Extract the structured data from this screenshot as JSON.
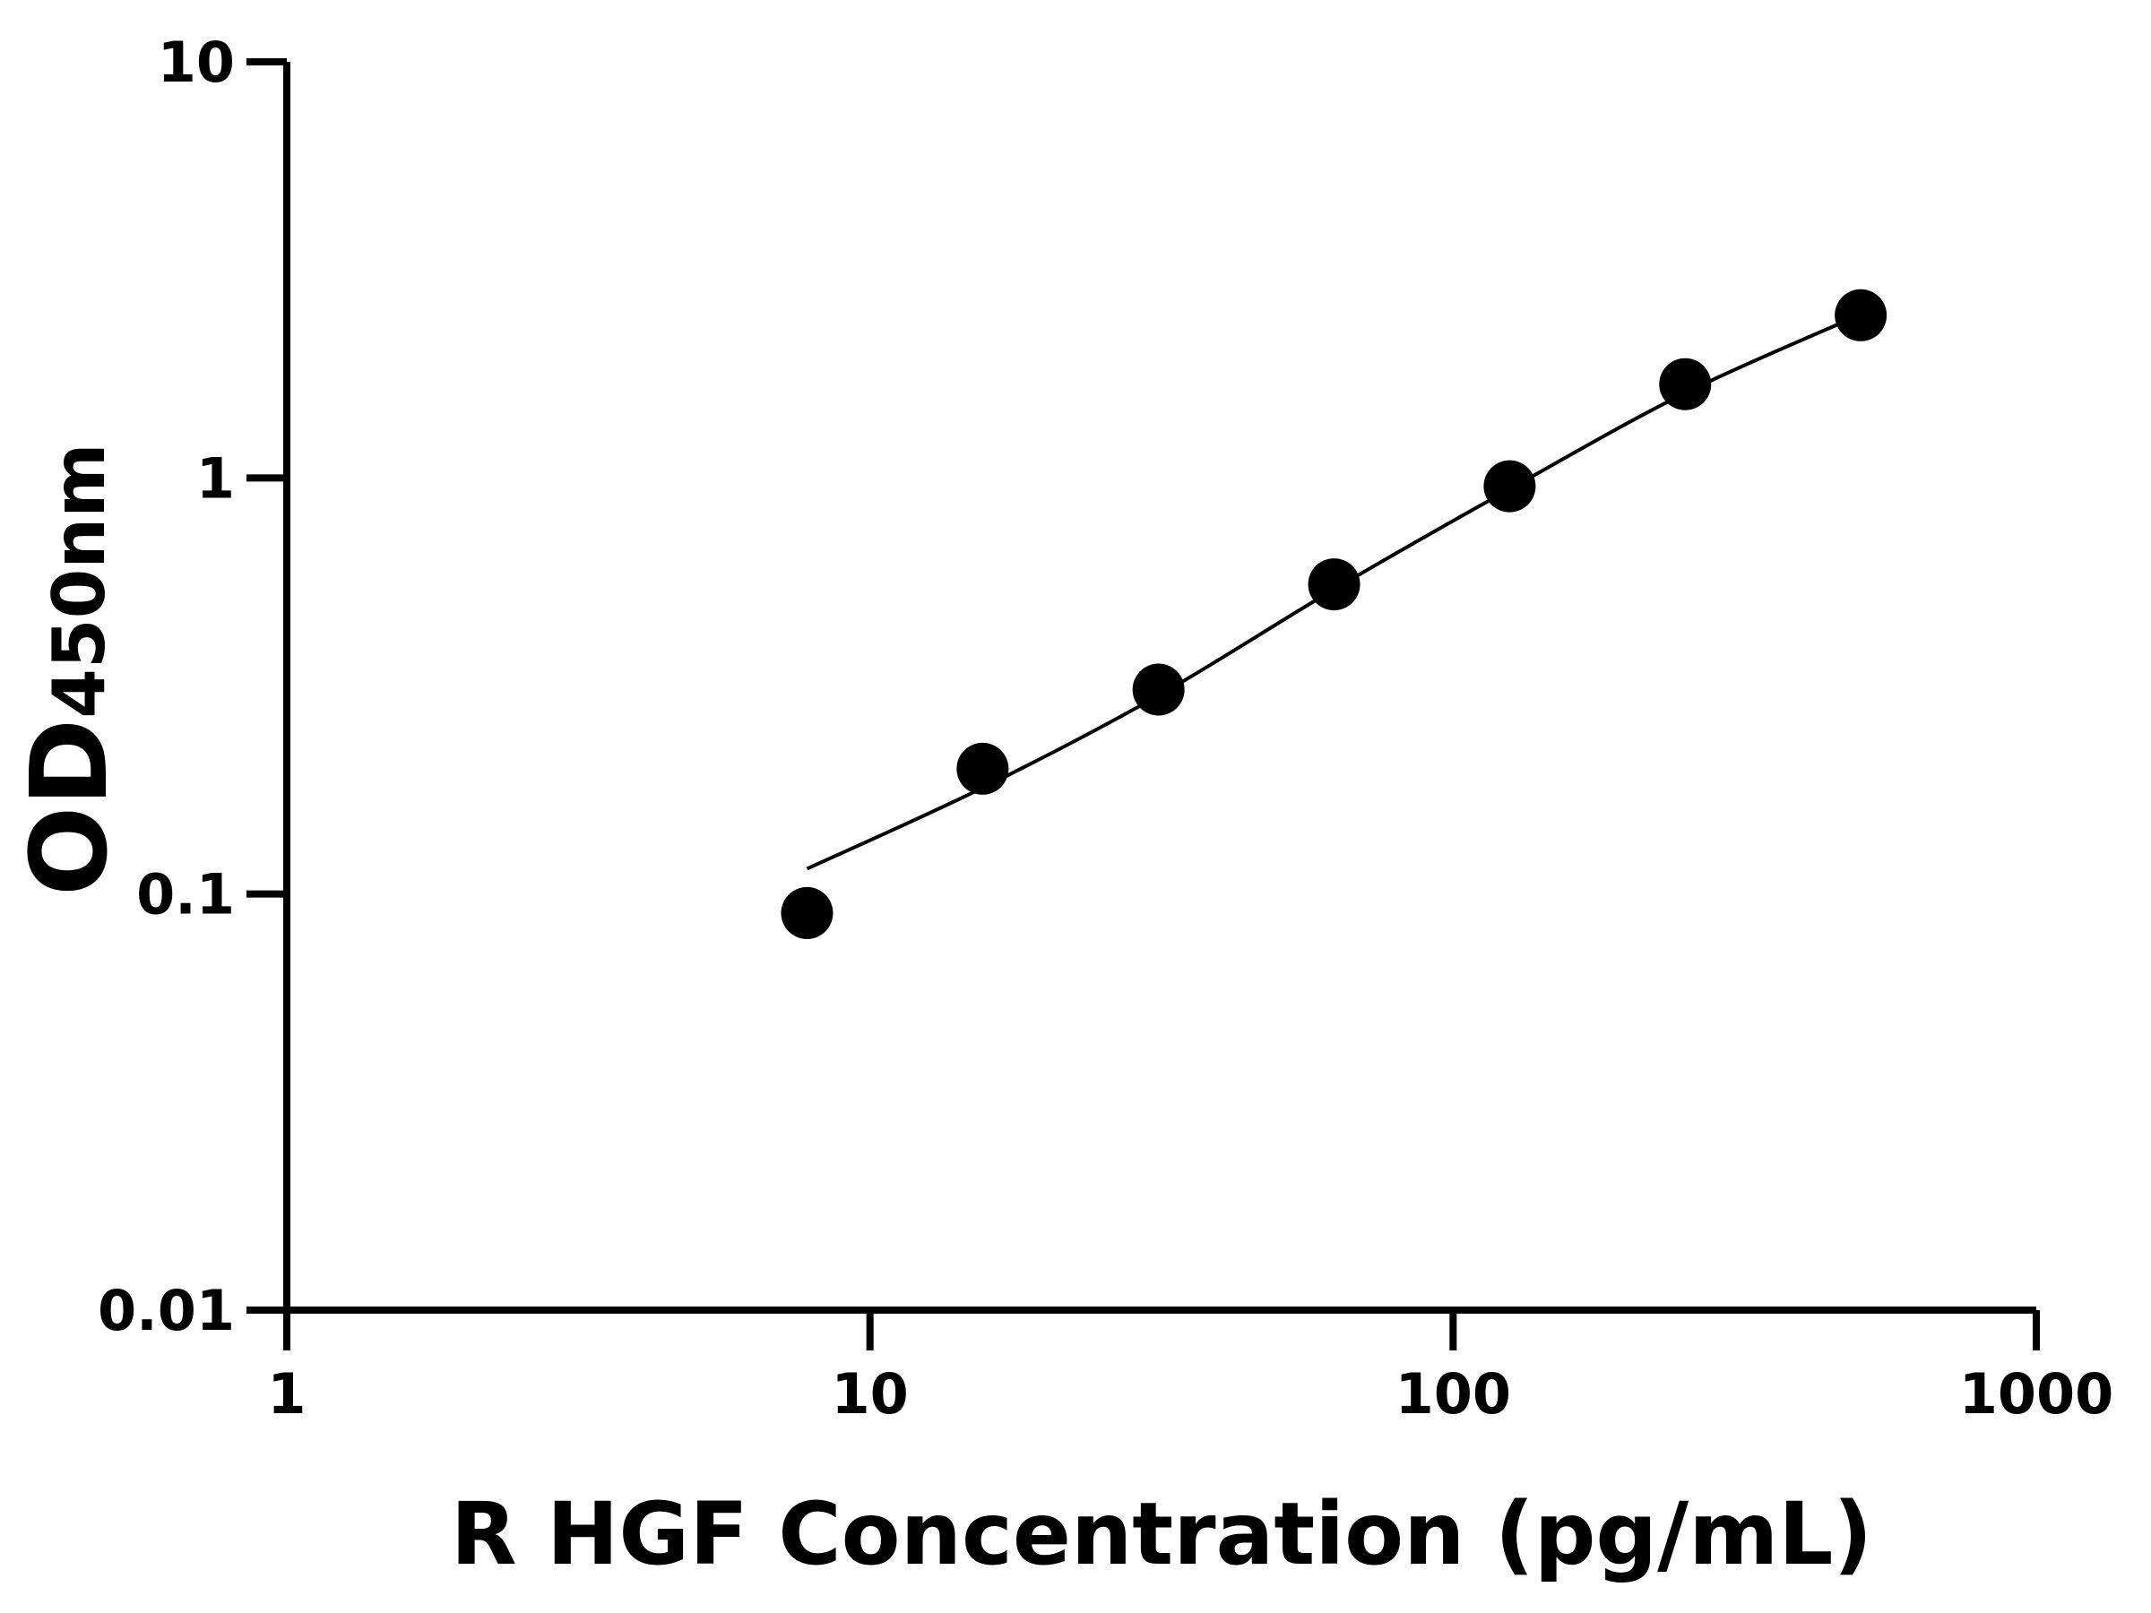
{
  "chart_data": {
    "type": "scatter",
    "title": "",
    "xlabel": "R HGF Concentration (pg/mL)",
    "ylabel_main": "OD",
    "ylabel_sub": "450nm",
    "x_scale": "log",
    "y_scale": "log",
    "xlim": [
      1,
      1000
    ],
    "ylim": [
      0.01,
      10
    ],
    "x_ticks": [
      "1",
      "10",
      "100",
      "1000"
    ],
    "y_ticks": [
      "0.01",
      "0.1",
      "1",
      "10"
    ],
    "grid": false,
    "legend": "none",
    "points": {
      "x": [
        7.8,
        15.6,
        31.25,
        62.5,
        125,
        250,
        500
      ],
      "y": [
        0.09,
        0.2,
        0.31,
        0.555,
        0.955,
        1.68,
        2.46
      ]
    },
    "fit_curve": {
      "x": [
        7.8,
        15.6,
        31.25,
        62.5,
        125,
        250,
        500
      ],
      "y": [
        0.115,
        0.18,
        0.3,
        0.54,
        0.94,
        1.6,
        2.47
      ]
    },
    "colors": {
      "points": "#000000",
      "curve": "#000000",
      "axes": "#000000"
    }
  }
}
